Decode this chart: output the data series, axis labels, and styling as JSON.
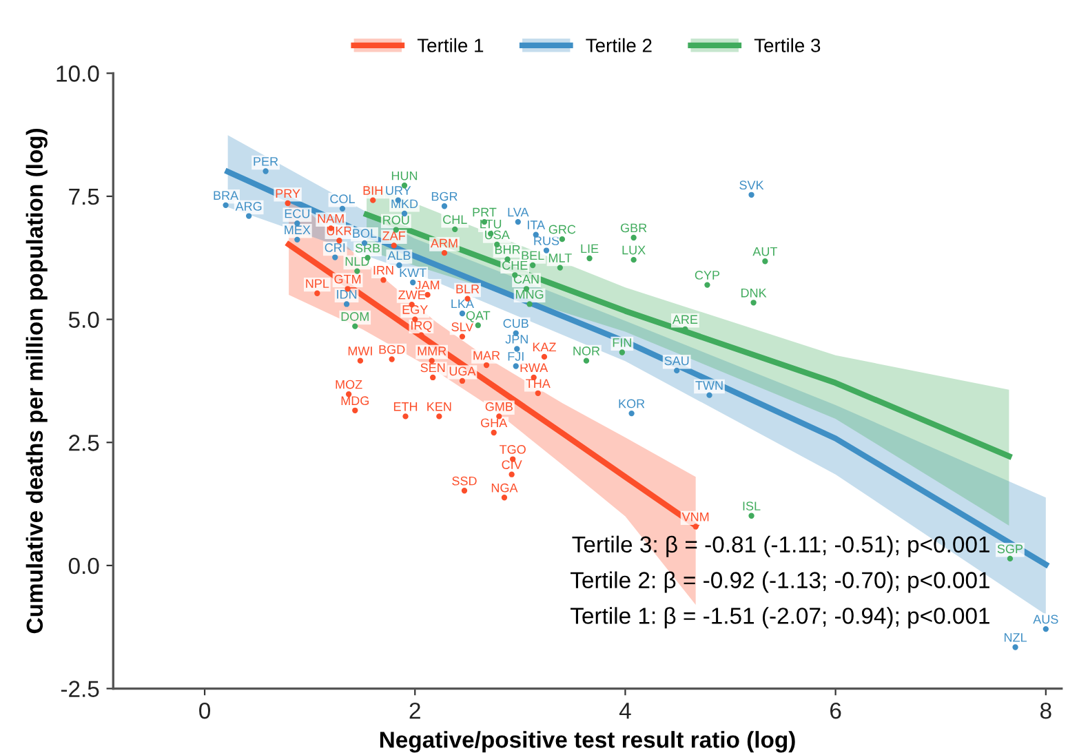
{
  "chart_data": {
    "type": "scatter",
    "xlabel": "Negative/positive test result ratio (log)",
    "ylabel": "Cumulative deaths per million population (log)",
    "xlim": [
      -0.87,
      8.15
    ],
    "ylim": [
      -2.5,
      10.0
    ],
    "xticks": [
      0,
      2,
      4,
      6,
      8
    ],
    "yticks": [
      {
        "value": -2.5,
        "label": "-2.5"
      },
      {
        "value": 0,
        "label": "0.0"
      },
      {
        "value": 2.5,
        "label": "2.5"
      },
      {
        "value": 5,
        "label": "5.0"
      },
      {
        "value": 7.5,
        "label": "7.5"
      },
      {
        "value": 10,
        "label": "10.0"
      }
    ],
    "grid": false,
    "legend": "top",
    "series": [
      {
        "color": "#fc4e2a",
        "x": [
          0.79,
          1.2,
          1.28,
          1.6,
          1.8,
          2.28,
          1.7,
          1.36,
          2.12,
          1.07,
          1.97,
          2.0,
          2.06,
          2.5,
          2.45,
          1.48,
          1.78,
          2.16,
          2.17,
          2.45,
          2.68,
          3.23,
          3.13,
          3.17,
          1.37,
          1.43,
          1.91,
          2.23,
          2.8,
          2.75,
          2.93,
          2.92,
          2.47,
          2.85,
          4.67
        ],
        "values": [
          7.36,
          6.85,
          6.6,
          7.42,
          6.5,
          6.35,
          5.8,
          5.62,
          5.5,
          5.53,
          5.3,
          5.0,
          4.68,
          5.42,
          4.65,
          4.16,
          4.19,
          4.16,
          3.82,
          3.75,
          4.07,
          4.24,
          3.82,
          3.5,
          3.48,
          3.15,
          3.03,
          3.03,
          3.03,
          2.7,
          2.16,
          1.85,
          1.52,
          1.38,
          0.79
        ],
        "value_labels": [
          "PRY",
          "NAM",
          "UKR",
          "BIH",
          "ZAF",
          "ARM",
          "IRN",
          "GTM",
          "JAM",
          "NPL",
          "ZWE",
          "EGY",
          "IRQ",
          "BLR",
          "SLV",
          "MWI",
          "BGD",
          "MMR",
          "SEN",
          "UGA",
          "MAR",
          "KAZ",
          "RWA",
          "THA",
          "MOZ",
          "MDG",
          "ETH",
          "KEN",
          "GMB",
          "GHA",
          "TGO",
          "CIV",
          "SSD",
          "NGA",
          "VNM"
        ]
      },
      {
        "color": "#3f8fc5",
        "x": [
          0.58,
          0.2,
          0.42,
          1.31,
          0.88,
          0.88,
          1.24,
          1.52,
          1.84,
          1.9,
          2.28,
          1.85,
          1.98,
          1.35,
          2.45,
          2.96,
          2.97,
          2.96,
          3.25,
          2.98,
          3.15,
          5.2,
          4.49,
          4.8,
          4.06,
          8.0,
          7.71
        ],
        "values": [
          8.01,
          7.32,
          7.1,
          7.25,
          6.95,
          6.62,
          6.26,
          6.55,
          7.42,
          7.15,
          7.3,
          6.1,
          5.75,
          5.31,
          5.12,
          4.72,
          4.4,
          4.05,
          6.4,
          6.98,
          6.72,
          7.53,
          3.96,
          3.46,
          3.09,
          -1.29,
          -1.66
        ],
        "value_labels": [
          "PER",
          "BRA",
          "ARG",
          "COL",
          "ECU",
          "MEX",
          "CRI",
          "BOL",
          "URY",
          "MKD",
          "BGR",
          "ALB",
          "KWT",
          "IDN",
          "LKA",
          "CUB",
          "JPN",
          "FJI",
          "RUS",
          "LVA",
          "ITA",
          "SVK",
          "SAU",
          "TWN",
          "KOR",
          "AUS",
          "NZL"
        ]
      },
      {
        "color": "#41ab5d",
        "x": [
          1.9,
          1.82,
          1.55,
          1.45,
          1.43,
          2.38,
          2.66,
          2.72,
          2.78,
          3.4,
          2.88,
          3.12,
          3.38,
          2.95,
          3.06,
          3.09,
          2.6,
          3.66,
          4.08,
          4.08,
          4.78,
          5.33,
          5.22,
          4.57,
          3.97,
          3.63,
          5.2,
          7.66
        ],
        "values": [
          7.72,
          6.82,
          6.25,
          5.98,
          4.86,
          6.83,
          6.98,
          6.74,
          6.52,
          6.63,
          6.22,
          6.1,
          6.05,
          5.9,
          5.62,
          5.31,
          4.88,
          6.24,
          6.66,
          6.21,
          5.7,
          6.18,
          5.34,
          4.8,
          4.33,
          4.16,
          1.01,
          0.14
        ],
        "value_labels": [
          "HUN",
          "ROU",
          "SRB",
          "NLD",
          "DOM",
          "CHL",
          "PRT",
          "LTU",
          "USA",
          "GRC",
          "BHR",
          "BEL",
          "MLT",
          "CHE",
          "CAN",
          "MNG",
          "QAT",
          "LIE",
          "GBR",
          "LUX",
          "CYP",
          "AUT",
          "DNK",
          "ARE",
          "FIN",
          "NOR",
          "ISL",
          "SGP"
        ]
      },
      {
        "type": "line",
        "name": "Tertile 1",
        "color": "#fc4e2a",
        "x": [
          0.8,
          1.5,
          2.2,
          2.7,
          3.4,
          4.0,
          4.67
        ],
        "values": [
          6.52,
          5.49,
          4.45,
          3.72,
          2.69,
          1.8,
          0.81
        ],
        "upper": [
          7.55,
          6.2,
          4.95,
          4.2,
          3.3,
          2.6,
          1.8
        ],
        "lower": [
          5.5,
          4.8,
          3.95,
          3.25,
          2.05,
          1.0,
          -0.8
        ]
      },
      {
        "type": "line",
        "name": "Tertile 2",
        "color": "#3f8fc5",
        "x": [
          0.22,
          1.99,
          4.0,
          6.0,
          8.0
        ],
        "values": [
          8.0,
          6.29,
          4.55,
          2.58,
          0.02
        ],
        "upper": [
          8.74,
          6.65,
          4.97,
          3.26,
          1.38
        ],
        "lower": [
          7.28,
          5.95,
          4.15,
          1.85,
          -1.0
        ]
      },
      {
        "type": "line",
        "name": "Tertile 3",
        "color": "#41ab5d",
        "x": [
          1.54,
          4.0,
          6.0,
          7.65
        ],
        "values": [
          7.13,
          5.17,
          3.71,
          2.22
        ],
        "upper": [
          7.75,
          5.65,
          4.27,
          3.57
        ],
        "lower": [
          6.4,
          4.75,
          2.98,
          0.81
        ]
      }
    ],
    "annotations": [
      "Tertile 3: β = -0.81 (-1.11; -0.51); p<0.001",
      "Tertile 2: β = -0.92 (-1.13; -0.70); p<0.001",
      "Tertile 1: β = -1.51 (-2.07; -0.94); p<0.001"
    ]
  }
}
